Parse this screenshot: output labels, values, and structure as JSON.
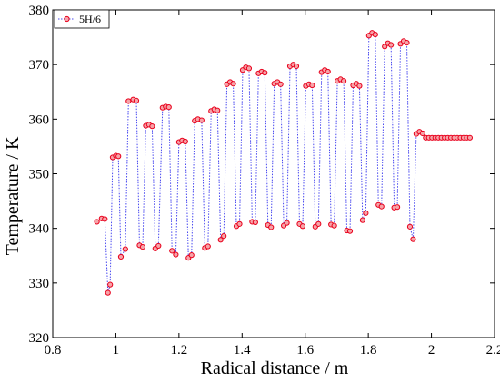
{
  "chart_data": {
    "type": "line",
    "title": "",
    "xlabel": "Radical distance / m",
    "ylabel": "Temperature / K",
    "xlim": [
      0.8,
      2.2
    ],
    "ylim": [
      320,
      380
    ],
    "x_ticks": [
      "0.8",
      "1",
      "1.2",
      "1.4",
      "1.6",
      "1.8",
      "2",
      "2.2"
    ],
    "y_ticks": [
      "320",
      "330",
      "340",
      "350",
      "360",
      "370",
      "380"
    ],
    "grid": false,
    "legend_position": "top-left",
    "series": [
      {
        "name": "5H/6",
        "line_color": "#4a4af0",
        "line_style": "dotted",
        "marker": "circle",
        "marker_color": "#e8001c",
        "x": [
          0.94,
          0.955,
          0.965,
          0.975,
          0.982,
          0.99,
          1.0,
          1.008,
          1.016,
          1.03,
          1.04,
          1.055,
          1.065,
          1.075,
          1.085,
          1.095,
          1.105,
          1.115,
          1.125,
          1.135,
          1.148,
          1.158,
          1.168,
          1.178,
          1.19,
          1.2,
          1.21,
          1.22,
          1.23,
          1.24,
          1.25,
          1.26,
          1.272,
          1.282,
          1.292,
          1.302,
          1.312,
          1.322,
          1.332,
          1.342,
          1.352,
          1.362,
          1.372,
          1.382,
          1.392,
          1.402,
          1.412,
          1.422,
          1.432,
          1.442,
          1.452,
          1.462,
          1.472,
          1.482,
          1.492,
          1.502,
          1.512,
          1.522,
          1.532,
          1.542,
          1.552,
          1.562,
          1.572,
          1.582,
          1.592,
          1.602,
          1.612,
          1.622,
          1.632,
          1.642,
          1.652,
          1.662,
          1.672,
          1.682,
          1.692,
          1.702,
          1.712,
          1.722,
          1.732,
          1.742,
          1.752,
          1.762,
          1.772,
          1.782,
          1.792,
          1.802,
          1.812,
          1.822,
          1.832,
          1.842,
          1.852,
          1.862,
          1.872,
          1.882,
          1.892,
          1.902,
          1.912,
          1.922,
          1.932,
          1.942,
          1.952,
          1.962,
          1.972,
          1.982,
          1.992,
          2.002,
          2.012,
          2.022,
          2.032,
          2.042,
          2.052,
          2.062,
          2.072,
          2.082,
          2.092,
          2.102,
          2.112,
          2.122
        ],
        "values": [
          341.2,
          341.8,
          341.7,
          328.2,
          329.7,
          353.0,
          353.3,
          353.2,
          334.8,
          336.2,
          363.3,
          363.6,
          363.4,
          336.9,
          336.6,
          358.8,
          359.0,
          358.7,
          336.3,
          336.8,
          362.1,
          362.3,
          362.2,
          335.9,
          335.2,
          355.8,
          356.1,
          355.9,
          334.6,
          335.1,
          359.7,
          360.0,
          359.8,
          336.4,
          336.7,
          361.5,
          361.8,
          361.6,
          337.9,
          338.6,
          366.4,
          366.8,
          366.5,
          340.4,
          340.8,
          369.0,
          369.5,
          369.3,
          341.2,
          341.1,
          368.4,
          368.7,
          368.5,
          340.6,
          340.2,
          366.5,
          366.8,
          366.4,
          340.5,
          341.0,
          369.7,
          370.0,
          369.7,
          340.8,
          340.4,
          366.1,
          366.4,
          366.2,
          340.3,
          340.8,
          368.6,
          369.0,
          368.7,
          340.7,
          340.5,
          367.0,
          367.3,
          367.0,
          339.6,
          339.5,
          366.2,
          366.5,
          366.1,
          341.5,
          342.8,
          375.3,
          375.8,
          375.5,
          344.3,
          344.0,
          373.3,
          373.9,
          373.6,
          343.8,
          343.9,
          373.8,
          374.3,
          374.0,
          340.3,
          338.0,
          357.3,
          357.7,
          357.4,
          356.6,
          356.6,
          356.6,
          356.6,
          356.6,
          356.6,
          356.6,
          356.6,
          356.6,
          356.6,
          356.6,
          356.6,
          356.6,
          356.6,
          356.6
        ]
      }
    ]
  }
}
